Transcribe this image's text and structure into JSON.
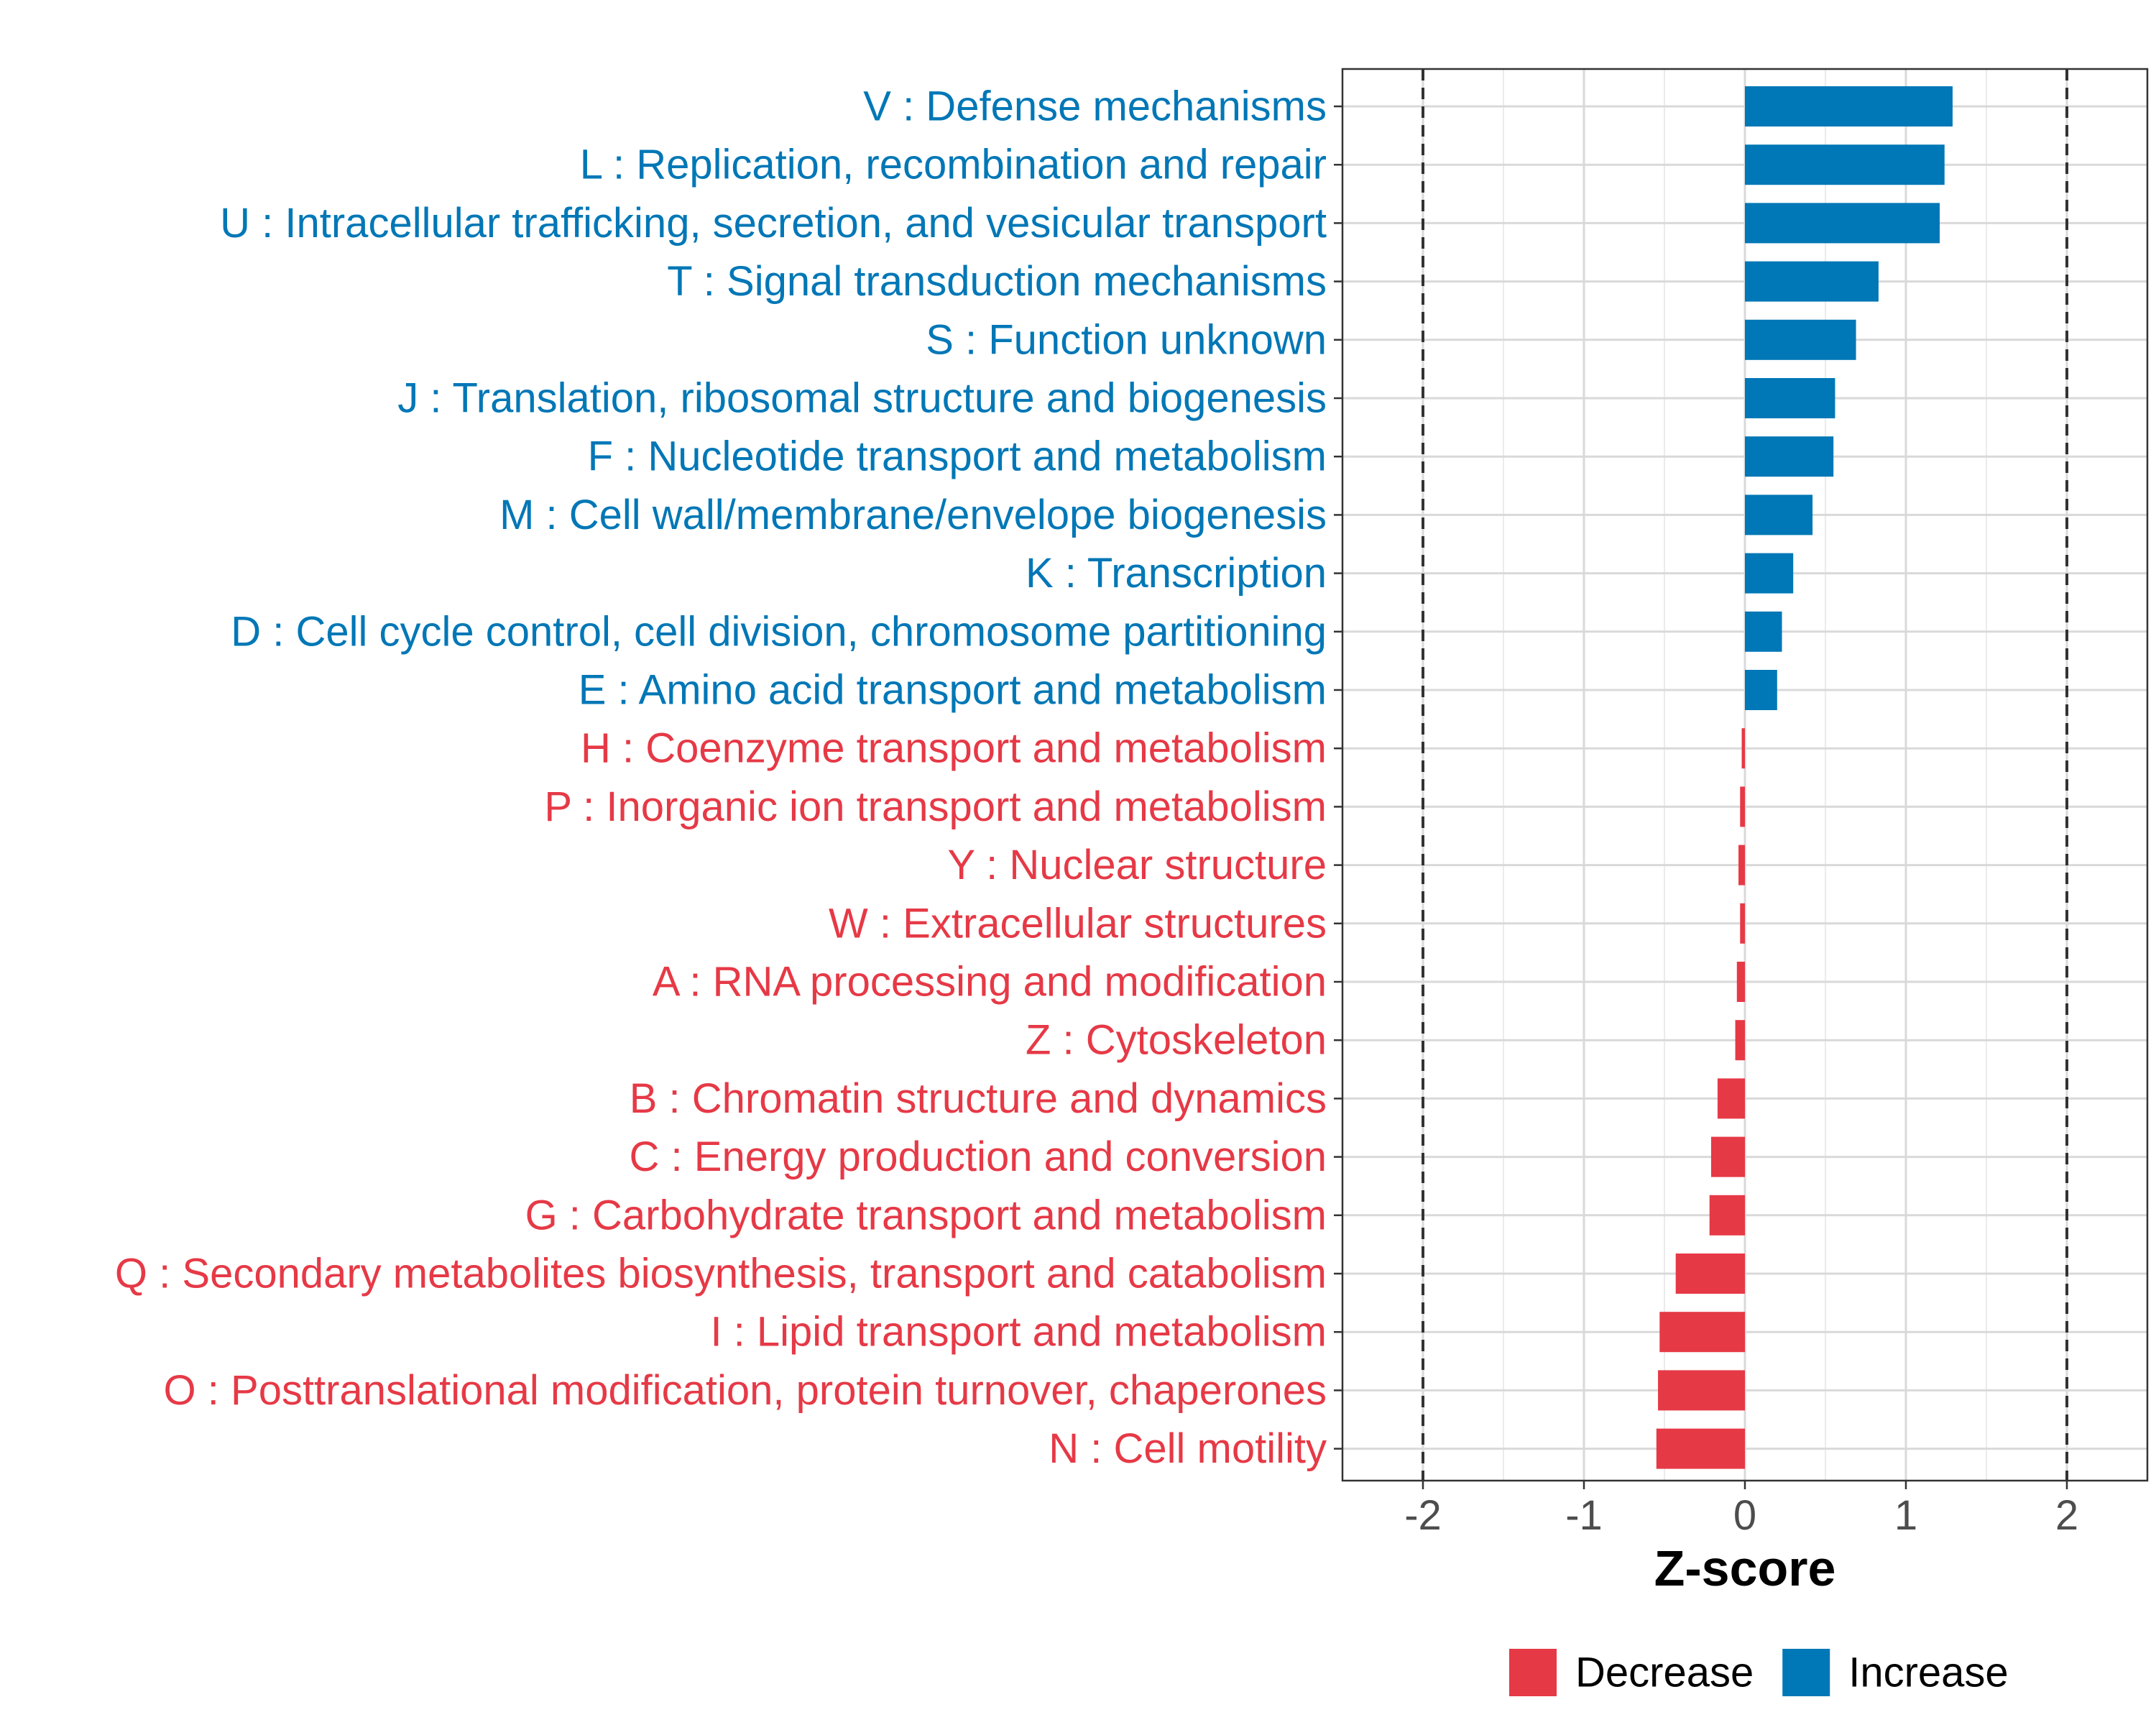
{
  "chart_data": {
    "type": "bar",
    "orientation": "horizontal",
    "title": "",
    "xlabel": "Z-score",
    "ylabel": "",
    "xlim": [
      -2.5,
      2.5
    ],
    "xticks": [
      -2,
      -1,
      0,
      1,
      2
    ],
    "xtick_labels": [
      "-2",
      "-1",
      "0",
      "1",
      "2"
    ],
    "reference_lines": [
      -2,
      2
    ],
    "grid": true,
    "legend": {
      "position": "bottom",
      "items": [
        {
          "name": "Decrease",
          "color": "#E63946"
        },
        {
          "name": "Increase",
          "color": "#0077B6"
        }
      ]
    },
    "categories": [
      "V : Defense mechanisms",
      "L : Replication, recombination and repair",
      "U : Intracellular trafficking, secretion, and vesicular transport",
      "T : Signal transduction mechanisms",
      "S : Function unknown",
      "J : Translation, ribosomal structure and biogenesis",
      "F : Nucleotide transport and metabolism",
      "M : Cell wall/membrane/envelope biogenesis",
      "K : Transcription",
      "D : Cell cycle control, cell division, chromosome partitioning",
      "E : Amino acid transport and metabolism",
      "H : Coenzyme transport and metabolism",
      "P : Inorganic ion transport and metabolism",
      "Y : Nuclear structure",
      "W : Extracellular structures",
      "A : RNA processing and modification",
      "Z : Cytoskeleton",
      "B : Chromatin structure and dynamics",
      "C : Energy production and conversion",
      "G : Carbohydrate transport and metabolism",
      "Q : Secondary metabolites biosynthesis, transport and catabolism",
      "I : Lipid transport and metabolism",
      "O : Posttranslational modification, protein turnover, chaperones",
      "N : Cell motility"
    ],
    "values": [
      1.29,
      1.24,
      1.21,
      0.83,
      0.69,
      0.56,
      0.55,
      0.42,
      0.3,
      0.23,
      0.2,
      -0.02,
      -0.03,
      -0.04,
      -0.03,
      -0.05,
      -0.06,
      -0.17,
      -0.21,
      -0.22,
      -0.43,
      -0.53,
      -0.54,
      -0.55
    ],
    "groups": [
      "Increase",
      "Increase",
      "Increase",
      "Increase",
      "Increase",
      "Increase",
      "Increase",
      "Increase",
      "Increase",
      "Increase",
      "Increase",
      "Decrease",
      "Decrease",
      "Decrease",
      "Decrease",
      "Decrease",
      "Decrease",
      "Decrease",
      "Decrease",
      "Decrease",
      "Decrease",
      "Decrease",
      "Decrease",
      "Decrease"
    ]
  }
}
